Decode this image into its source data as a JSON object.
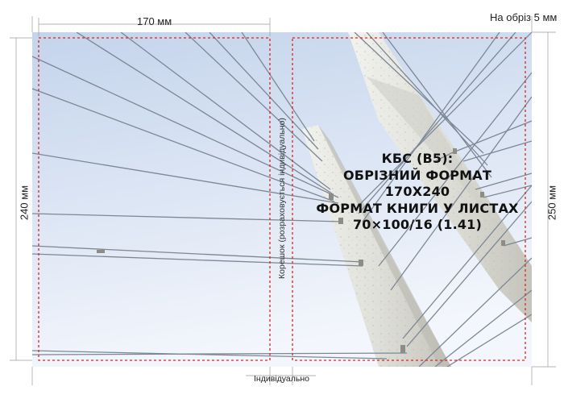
{
  "dimensions": {
    "width_label": "170 мм",
    "height_left_label": "240 мм",
    "height_right_label": "250 мм",
    "bleed_label": "На обріз 5 мм",
    "spine_label": "Корешок (розраховується індивідуально)",
    "spine_width_label": "Індивідуально"
  },
  "format": {
    "line1": "КБС (В5):",
    "line2": "ОБРІЗНИЙ ФОРМАТ",
    "line3": "170Х240",
    "line4": "ФОРМАТ КНИГИ У ЛИСТАХ",
    "line5": "70×100/16 (1.41)"
  },
  "colors": {
    "sky_top": "#c5d5ec",
    "sky_bottom": "#f4f7fc",
    "trim_line": "#d9261c",
    "guide_line": "#9a9a9a",
    "cable": "#7e8796",
    "pylon": "#dcdcd6"
  }
}
